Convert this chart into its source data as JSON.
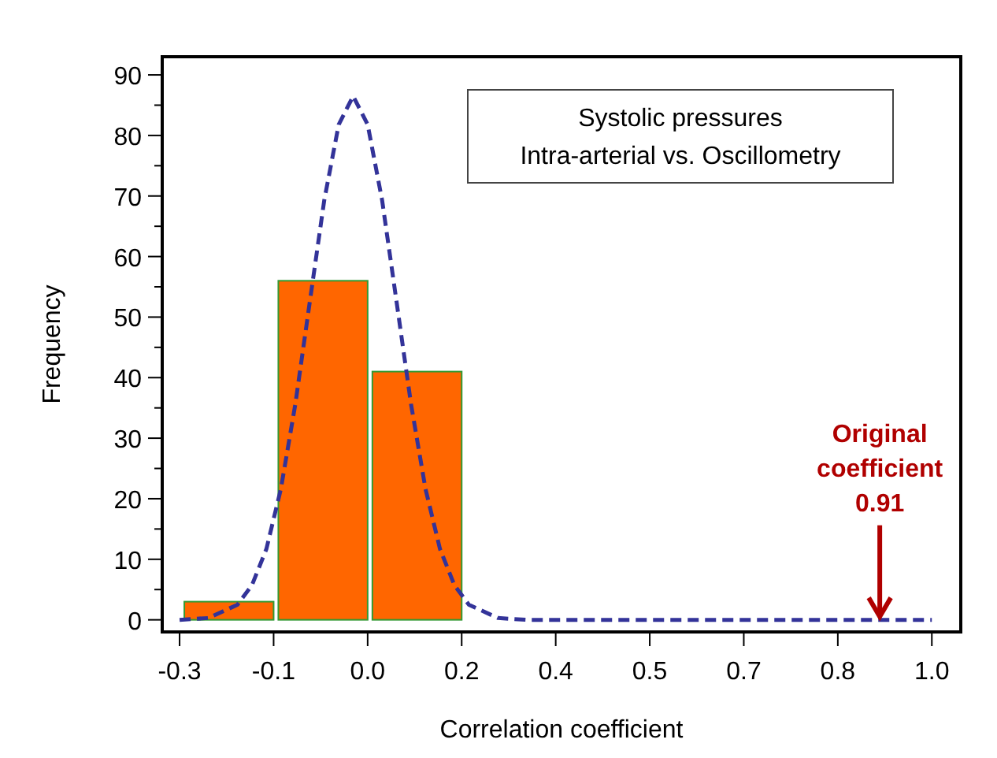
{
  "chart_data": {
    "type": "histogram",
    "title": "Systolic pressures",
    "subtitle": "Intra-arterial vs. Oscillometry",
    "xlabel": "Correlation coefficient",
    "ylabel": "Frequency",
    "bins": [
      -0.3,
      -0.1375,
      0.025,
      0.1875
    ],
    "series": [
      {
        "color": "#ff6600",
        "values": [
          3,
          56,
          41
        ]
      },
      {
        "type": "line",
        "color": "#333399",
        "line_style": "dashed",
        "x": [
          -0.3,
          -0.25,
          -0.2,
          -0.175,
          -0.15,
          -0.125,
          -0.1,
          -0.075,
          -0.05,
          -0.025,
          0,
          0.025,
          0.05,
          0.075,
          0.1,
          0.125,
          0.15,
          0.175,
          0.2,
          0.25,
          0.3,
          0.4,
          0.6,
          0.8,
          1.0
        ],
        "values": [
          0,
          0.3,
          2.5,
          5.7,
          11.7,
          21.6,
          35.6,
          52.5,
          69.3,
          81.8,
          86.5,
          81.8,
          69.3,
          52.5,
          35.6,
          21.6,
          11.7,
          5.7,
          2.5,
          0.3,
          0,
          0,
          0,
          0,
          0
        ]
      }
    ],
    "xlim": [
      -0.33,
      1.05
    ],
    "ylim": [
      -2,
      93
    ],
    "xticks": [
      -0.3,
      {
        "value": -0.1375,
        "label": "-0.1"
      },
      {
        "value": 0.025,
        "label": "0.0"
      },
      {
        "value": 0.1875,
        "label": "0.2"
      },
      {
        "value": 0.35,
        "label": "0.4"
      },
      {
        "value": 0.5125,
        "label": "0.5"
      },
      {
        "value": 0.675,
        "label": "0.7"
      },
      {
        "value": 0.8375,
        "label": "0.8"
      },
      {
        "value": 1.0,
        "label": "1.0"
      }
    ],
    "yticks": [
      0,
      {
        "value": 5,
        "label": null
      },
      10,
      {
        "value": 15,
        "label": null
      },
      20,
      {
        "value": 25,
        "label": null
      },
      30,
      {
        "value": 35,
        "label": null
      },
      40,
      {
        "value": 45,
        "label": null
      },
      50,
      {
        "value": 55,
        "label": null
      },
      60,
      {
        "value": 65,
        "label": null
      },
      70,
      {
        "value": 75,
        "label": null
      },
      80,
      {
        "value": 85,
        "label": null
      },
      90
    ],
    "annotations": [
      {
        "text": "Original coefficient 0.91",
        "x": 0.91,
        "y": 0
      }
    ],
    "grid": false
  }
}
